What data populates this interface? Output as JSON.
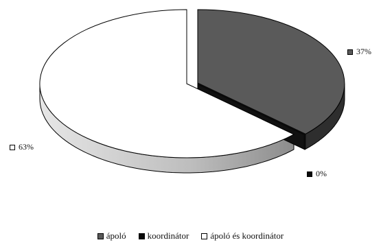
{
  "chart_data": {
    "type": "pie",
    "title": "",
    "categories": [
      "ápoló",
      "koordinátor",
      "ápoló és koordinátor"
    ],
    "values": [
      37,
      0,
      63
    ],
    "data_labels": [
      "37%",
      "0%",
      "63%"
    ],
    "colors": [
      "#5a5a5a",
      "#0a0a0a",
      "#ffffff"
    ],
    "legend": {
      "position": "bottom",
      "items": [
        "ápoló",
        "koordinátor",
        "ápoló és koordinátor"
      ]
    }
  }
}
